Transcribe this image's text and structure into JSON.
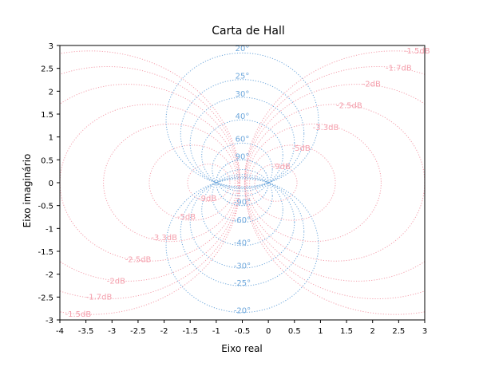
{
  "chart_data": {
    "type": "line",
    "title": "Carta de Hall",
    "xlabel": "Eixo real",
    "ylabel": "Eixo imaginário",
    "xlim": [
      -4,
      3
    ],
    "ylim": [
      -3,
      3
    ],
    "xticks": [
      -4,
      -3.5,
      -3,
      -2.5,
      -2,
      -1.5,
      -1,
      -0.5,
      0,
      0.5,
      1,
      1.5,
      2,
      2.5,
      3
    ],
    "yticks": [
      -3,
      -2.5,
      -2,
      -1.5,
      -1,
      -0.5,
      0,
      0.5,
      1,
      1.5,
      2,
      2.5,
      3
    ],
    "xtick_labels": [
      "-4",
      "-3.5",
      "-3",
      "-2.5",
      "-2",
      "-1.5",
      "-1",
      "-0.5",
      "0",
      "0.5",
      "1",
      "1.5",
      "2",
      "2.5",
      "3"
    ],
    "ytick_labels": [
      "-3",
      "-2.5",
      "-2",
      "-1.5",
      "-1",
      "-0.5",
      "0",
      "0.5",
      "1",
      "1.5",
      "2",
      "2.5",
      "3"
    ],
    "grid": false,
    "colors": {
      "magnitude": "#f4a0ad",
      "phase": "#6fa8dc"
    },
    "magnitude_contours_db": [
      -1.5,
      -1.7,
      -2,
      -2.5,
      -3.3,
      -5,
      -9
    ],
    "magnitude_labels": [
      {
        "text": "-1.5dB",
        "x": 2.6,
        "y": 2.88
      },
      {
        "text": "-1.7dB",
        "x": 2.25,
        "y": 2.5
      },
      {
        "text": "-2dB",
        "x": 1.8,
        "y": 2.15
      },
      {
        "text": "-2.5dB",
        "x": 1.3,
        "y": 1.68
      },
      {
        "text": "-3.3dB",
        "x": 0.85,
        "y": 1.2
      },
      {
        "text": "-5dB",
        "x": 0.45,
        "y": 0.75
      },
      {
        "text": "-9dB",
        "x": 0.07,
        "y": 0.35
      },
      {
        "text": "-9dB",
        "x": -1.35,
        "y": -0.35
      },
      {
        "text": "-5dB",
        "x": -1.75,
        "y": -0.75
      },
      {
        "text": "-3.3dB",
        "x": -2.25,
        "y": -1.2
      },
      {
        "text": "-2.5dB",
        "x": -2.75,
        "y": -1.68
      },
      {
        "text": "-2dB",
        "x": -3.1,
        "y": -2.15
      },
      {
        "text": "-1.7dB",
        "x": -3.5,
        "y": -2.5
      },
      {
        "text": "-1.5dB",
        "x": -3.9,
        "y": -2.88
      }
    ],
    "phase_contours_deg": [
      20,
      25,
      30,
      40,
      60,
      90,
      -90,
      -60,
      -40,
      -30,
      -25,
      -20
    ],
    "phase_labels": [
      {
        "text": "20°",
        "x": -0.5,
        "y": 2.93
      },
      {
        "text": "25°",
        "x": -0.5,
        "y": 2.33
      },
      {
        "text": "30°",
        "x": -0.5,
        "y": 1.94
      },
      {
        "text": "40°",
        "x": -0.5,
        "y": 1.45
      },
      {
        "text": "60°",
        "x": -0.5,
        "y": 0.95
      },
      {
        "text": "90°",
        "x": -0.5,
        "y": 0.57
      },
      {
        "text": "-90°",
        "x": -0.5,
        "y": -0.43
      },
      {
        "text": "-60°",
        "x": -0.5,
        "y": -0.82
      },
      {
        "text": "-40°",
        "x": -0.5,
        "y": -1.32
      },
      {
        "text": "-30°",
        "x": -0.5,
        "y": -1.82
      },
      {
        "text": "-25°",
        "x": -0.5,
        "y": -2.2
      },
      {
        "text": "-20°",
        "x": -0.5,
        "y": -2.8
      }
    ]
  }
}
